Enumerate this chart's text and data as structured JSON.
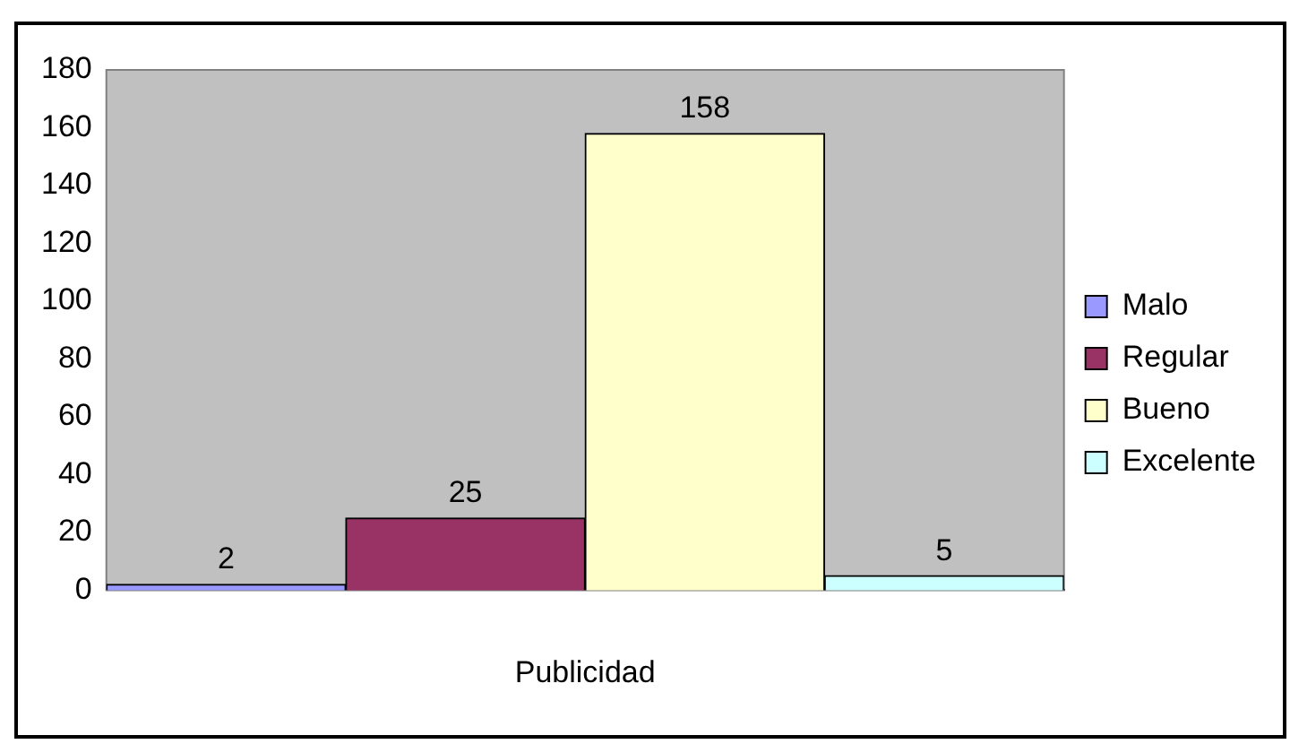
{
  "chart_data": {
    "type": "bar",
    "categories": [
      null,
      null,
      null,
      null
    ],
    "xlabel": "Publicidad",
    "series": [
      {
        "name": "Malo",
        "color": "#9999ff",
        "values": [
          2,
          null,
          null,
          null
        ]
      },
      {
        "name": "Regular",
        "color": "#993366",
        "values": [
          null,
          25,
          null,
          null
        ]
      },
      {
        "name": "Bueno",
        "color": "#ffffcc",
        "values": [
          null,
          null,
          158,
          null
        ]
      },
      {
        "name": "Excelente",
        "color": "#ccffff",
        "values": [
          null,
          null,
          null,
          5
        ]
      }
    ],
    "ylim": [
      0,
      180
    ],
    "yticks": [
      0,
      20,
      40,
      60,
      80,
      100,
      120,
      140,
      160,
      180
    ],
    "grid": false,
    "legend": "right",
    "data_labels": true
  }
}
